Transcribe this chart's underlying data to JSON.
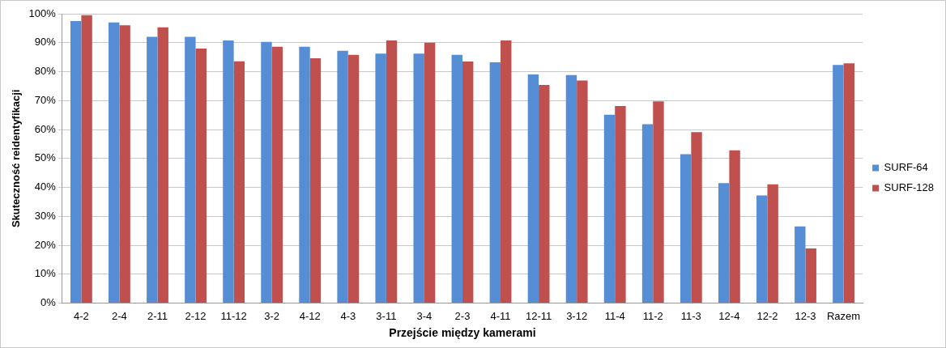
{
  "chart_data": {
    "type": "bar",
    "xlabel": "Przejście między kamerami",
    "ylabel": "Skuteczność reidentyfikacji",
    "categories": [
      "4-2",
      "2-4",
      "2-11",
      "2-12",
      "11-12",
      "3-2",
      "4-12",
      "4-3",
      "3-11",
      "3-4",
      "2-3",
      "4-11",
      "12-11",
      "3-12",
      "11-4",
      "11-2",
      "11-3",
      "12-4",
      "12-2",
      "12-3",
      "Razem"
    ],
    "series": [
      {
        "name": "SURF-64",
        "color": "#558ed5",
        "values": [
          97.5,
          97,
          92,
          92,
          90.8,
          90.3,
          88.6,
          87.2,
          86.2,
          86.2,
          85.8,
          83.2,
          79,
          78.8,
          65.1,
          61.8,
          51.5,
          41.5,
          37.2,
          26.5,
          82.3
        ]
      },
      {
        "name": "SURF-128",
        "color": "#c0504d",
        "values": [
          99.5,
          96,
          95.3,
          88,
          83.6,
          88.6,
          84.6,
          85.8,
          90.8,
          90,
          83.5,
          90.8,
          75.4,
          76.9,
          68.1,
          69.7,
          59.1,
          52.8,
          41.1,
          18.9,
          82.9
        ]
      }
    ],
    "ylim": [
      0,
      100
    ],
    "yticks": [
      {
        "value": 0,
        "label": "0%"
      },
      {
        "value": 10,
        "label": "10%"
      },
      {
        "value": 20,
        "label": "20%"
      },
      {
        "value": 30,
        "label": "30%"
      },
      {
        "value": 40,
        "label": "40%"
      },
      {
        "value": 50,
        "label": "50%"
      },
      {
        "value": 60,
        "label": "60%"
      },
      {
        "value": 70,
        "label": "70%"
      },
      {
        "value": 80,
        "label": "80%"
      },
      {
        "value": 90,
        "label": "90%"
      },
      {
        "value": 100,
        "label": "100%"
      }
    ],
    "grid": "y",
    "legend": "right"
  }
}
